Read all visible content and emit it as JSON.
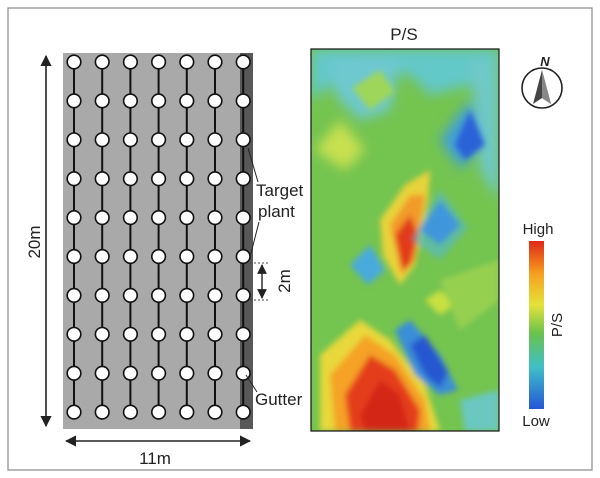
{
  "layout_panel": {
    "label_width": "11m",
    "label_height": "20m",
    "label_spacing": "2m",
    "label_target_plant_line1": "Target",
    "label_target_plant_line2": "plant",
    "label_gutter": "Gutter",
    "grid": {
      "columns": 7,
      "rows": 10
    },
    "colors": {
      "bed": "#a9a9a9",
      "gutter": "#555555",
      "plant_fill": "#ffffff",
      "stem": "#111111"
    }
  },
  "heatmap_panel": {
    "title": "P/S",
    "legend_title": "P/S",
    "legend_high": "High",
    "legend_low": "Low",
    "colors": {
      "low": "#2a62d8",
      "mid": "#6ac24c",
      "high": "#e8341c"
    }
  },
  "compass": {
    "label": "N",
    "icon": "north-arrow-icon"
  }
}
